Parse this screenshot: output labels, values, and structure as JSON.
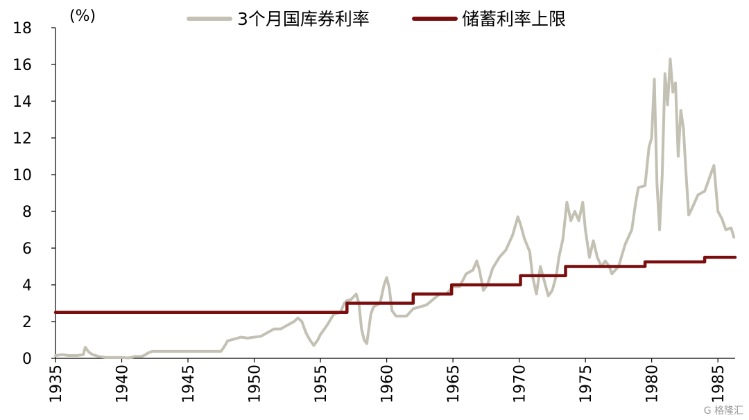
{
  "chart_data": {
    "type": "line",
    "ylabel": "(%)",
    "ylim": [
      0,
      18
    ],
    "yticks": [
      0,
      2,
      4,
      6,
      8,
      10,
      12,
      14,
      16,
      18
    ],
    "xlim": [
      1935,
      1986.3
    ],
    "xticks": [
      1935,
      1940,
      1945,
      1950,
      1955,
      1960,
      1965,
      1970,
      1975,
      1980,
      1985
    ],
    "xtick_labels": [
      "1935",
      "1940",
      "1945",
      "1950",
      "1955",
      "1960",
      "1965",
      "1970",
      "1975",
      "1980",
      "1985"
    ],
    "legend_position": "top",
    "grid": false,
    "series": [
      {
        "name": "3个月国库券利率",
        "color": "#c3c1b3",
        "points": [
          [
            1935.0,
            0.15
          ],
          [
            1935.5,
            0.2
          ],
          [
            1936.0,
            0.15
          ],
          [
            1936.6,
            0.15
          ],
          [
            1937.1,
            0.2
          ],
          [
            1937.25,
            0.6
          ],
          [
            1937.5,
            0.35
          ],
          [
            1937.8,
            0.2
          ],
          [
            1938.3,
            0.1
          ],
          [
            1938.8,
            0.05
          ],
          [
            1939.5,
            0.05
          ],
          [
            1940.0,
            0.05
          ],
          [
            1940.5,
            0.02
          ],
          [
            1941.0,
            0.1
          ],
          [
            1941.5,
            0.1
          ],
          [
            1941.8,
            0.2
          ],
          [
            1942.0,
            0.3
          ],
          [
            1942.3,
            0.38
          ],
          [
            1947.5,
            0.38
          ],
          [
            1947.8,
            0.7
          ],
          [
            1948.0,
            0.95
          ],
          [
            1948.5,
            1.05
          ],
          [
            1949.0,
            1.15
          ],
          [
            1949.5,
            1.1
          ],
          [
            1950.0,
            1.15
          ],
          [
            1950.5,
            1.2
          ],
          [
            1951.0,
            1.4
          ],
          [
            1951.5,
            1.6
          ],
          [
            1952.0,
            1.6
          ],
          [
            1952.5,
            1.8
          ],
          [
            1953.0,
            2.0
          ],
          [
            1953.3,
            2.2
          ],
          [
            1953.6,
            2.0
          ],
          [
            1953.9,
            1.4
          ],
          [
            1954.2,
            1.0
          ],
          [
            1954.5,
            0.7
          ],
          [
            1954.8,
            1.0
          ],
          [
            1955.0,
            1.3
          ],
          [
            1955.5,
            1.8
          ],
          [
            1956.0,
            2.4
          ],
          [
            1956.5,
            2.5
          ],
          [
            1956.8,
            3.0
          ],
          [
            1957.0,
            3.15
          ],
          [
            1957.3,
            3.2
          ],
          [
            1957.7,
            3.5
          ],
          [
            1957.9,
            3.0
          ],
          [
            1958.1,
            1.6
          ],
          [
            1958.3,
            1.0
          ],
          [
            1958.5,
            0.8
          ],
          [
            1958.8,
            2.4
          ],
          [
            1959.0,
            2.8
          ],
          [
            1959.5,
            3.0
          ],
          [
            1959.8,
            4.0
          ],
          [
            1960.0,
            4.4
          ],
          [
            1960.2,
            3.8
          ],
          [
            1960.4,
            2.6
          ],
          [
            1960.7,
            2.3
          ],
          [
            1961.0,
            2.3
          ],
          [
            1961.5,
            2.3
          ],
          [
            1962.0,
            2.7
          ],
          [
            1962.5,
            2.8
          ],
          [
            1963.0,
            2.9
          ],
          [
            1963.5,
            3.2
          ],
          [
            1964.0,
            3.5
          ],
          [
            1964.5,
            3.5
          ],
          [
            1965.0,
            3.9
          ],
          [
            1965.5,
            3.9
          ],
          [
            1966.0,
            4.6
          ],
          [
            1966.5,
            4.8
          ],
          [
            1966.8,
            5.3
          ],
          [
            1967.0,
            4.8
          ],
          [
            1967.3,
            3.7
          ],
          [
            1967.6,
            4.0
          ],
          [
            1968.0,
            4.9
          ],
          [
            1968.5,
            5.5
          ],
          [
            1969.0,
            5.9
          ],
          [
            1969.5,
            6.7
          ],
          [
            1969.9,
            7.7
          ],
          [
            1970.1,
            7.3
          ],
          [
            1970.4,
            6.5
          ],
          [
            1970.8,
            5.8
          ],
          [
            1971.0,
            4.5
          ],
          [
            1971.3,
            3.5
          ],
          [
            1971.6,
            5.0
          ],
          [
            1971.9,
            4.2
          ],
          [
            1972.2,
            3.4
          ],
          [
            1972.5,
            3.7
          ],
          [
            1972.8,
            4.5
          ],
          [
            1973.0,
            5.5
          ],
          [
            1973.3,
            6.5
          ],
          [
            1973.6,
            8.5
          ],
          [
            1973.9,
            7.5
          ],
          [
            1974.2,
            8.0
          ],
          [
            1974.5,
            7.5
          ],
          [
            1974.8,
            8.5
          ],
          [
            1975.0,
            7.0
          ],
          [
            1975.3,
            5.5
          ],
          [
            1975.6,
            6.4
          ],
          [
            1975.9,
            5.5
          ],
          [
            1976.2,
            5.0
          ],
          [
            1976.5,
            5.3
          ],
          [
            1976.8,
            5.0
          ],
          [
            1977.0,
            4.6
          ],
          [
            1977.5,
            5.0
          ],
          [
            1978.0,
            6.2
          ],
          [
            1978.5,
            7.0
          ],
          [
            1978.8,
            8.5
          ],
          [
            1979.0,
            9.3
          ],
          [
            1979.5,
            9.4
          ],
          [
            1979.8,
            11.5
          ],
          [
            1980.0,
            12.0
          ],
          [
            1980.2,
            15.2
          ],
          [
            1980.4,
            9.5
          ],
          [
            1980.6,
            7.0
          ],
          [
            1980.8,
            10.0
          ],
          [
            1981.0,
            15.5
          ],
          [
            1981.2,
            13.8
          ],
          [
            1981.4,
            16.3
          ],
          [
            1981.6,
            14.5
          ],
          [
            1981.8,
            15.0
          ],
          [
            1982.0,
            11.0
          ],
          [
            1982.2,
            13.5
          ],
          [
            1982.4,
            12.5
          ],
          [
            1982.6,
            10.0
          ],
          [
            1982.8,
            7.8
          ],
          [
            1983.0,
            8.1
          ],
          [
            1983.5,
            8.9
          ],
          [
            1984.0,
            9.1
          ],
          [
            1984.4,
            9.9
          ],
          [
            1984.7,
            10.5
          ],
          [
            1985.0,
            8.0
          ],
          [
            1985.3,
            7.6
          ],
          [
            1985.6,
            7.0
          ],
          [
            1986.0,
            7.1
          ],
          [
            1986.2,
            6.6
          ]
        ]
      },
      {
        "name": "储蓄利率上限",
        "color": "#7a0e0e",
        "points": [
          [
            1935.0,
            2.5
          ],
          [
            1957.0,
            2.5
          ],
          [
            1957.0,
            3.0
          ],
          [
            1962.0,
            3.0
          ],
          [
            1962.0,
            3.5
          ],
          [
            1964.9,
            3.5
          ],
          [
            1964.9,
            4.0
          ],
          [
            1970.1,
            4.0
          ],
          [
            1970.1,
            4.5
          ],
          [
            1973.5,
            4.5
          ],
          [
            1973.5,
            5.0
          ],
          [
            1979.5,
            5.0
          ],
          [
            1979.5,
            5.25
          ],
          [
            1984.0,
            5.25
          ],
          [
            1984.0,
            5.5
          ],
          [
            1986.3,
            5.5
          ]
        ]
      }
    ]
  },
  "watermark": "G 格隆汇"
}
